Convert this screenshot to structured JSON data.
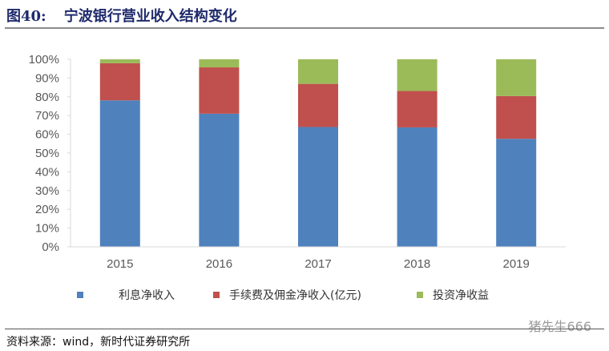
{
  "header": {
    "figure_no": "图40:",
    "title": "宁波银行营业收入结构变化"
  },
  "chart_data": {
    "type": "bar",
    "stacked": true,
    "categories": [
      "2015",
      "2016",
      "2017",
      "2018",
      "2019"
    ],
    "series": [
      {
        "name": "利息净收入",
        "color": "#4f81bd",
        "values": [
          78.1,
          71.0,
          63.9,
          63.7,
          57.6
        ]
      },
      {
        "name": "手续费及佣金净收入(亿元)",
        "color": "#c0504d",
        "values": [
          19.8,
          24.7,
          23.0,
          19.4,
          22.8
        ]
      },
      {
        "name": "投资净收益",
        "color": "#9bbb59",
        "values": [
          2.1,
          4.3,
          13.1,
          16.9,
          19.6
        ]
      }
    ],
    "ylim": [
      0,
      100
    ],
    "yticks": [
      "0%",
      "10%",
      "20%",
      "30%",
      "40%",
      "50%",
      "60%",
      "70%",
      "80%",
      "90%",
      "100%"
    ],
    "grid": false,
    "legend_position": "bottom"
  },
  "footer": {
    "source": "资料来源：wind，新时代证券研究所",
    "watermark": "猪先生666"
  }
}
